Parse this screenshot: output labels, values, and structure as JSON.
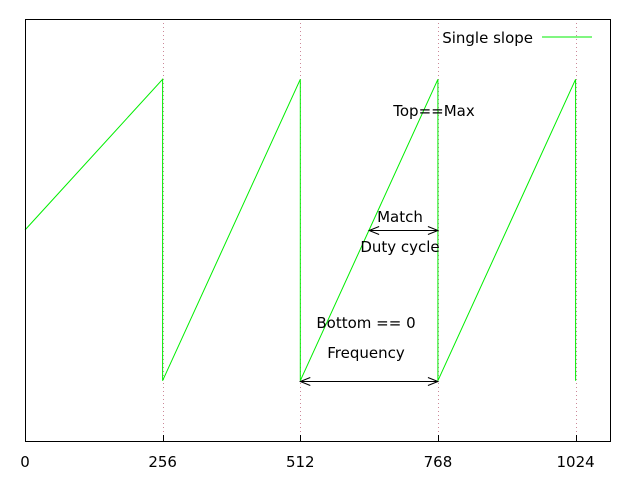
{
  "chart_data": {
    "type": "line",
    "xlim": [
      0,
      1088
    ],
    "ylim": [
      -0.2,
      1.2
    ],
    "x_ticks": [
      0,
      256,
      512,
      768,
      1024
    ],
    "x_tick_labels": [
      "0",
      "256",
      "512",
      "768",
      "1024"
    ],
    "y_ticks": [],
    "grid": "vertical dotted lines at x ticks",
    "legend_position": "top-right",
    "series": [
      {
        "name": "Single slope",
        "color": "#00ee00",
        "x": [
          0,
          256,
          256,
          512,
          512,
          768,
          768,
          1024,
          1024
        ],
        "y": [
          0.5,
          1.0,
          0.0,
          1.0,
          0.0,
          1.0,
          0.0,
          1.0,
          0.0
        ]
      }
    ],
    "annotations": {
      "top_label": {
        "text": "Top==Max",
        "x": 768,
        "y": 1.0
      },
      "match_label": {
        "text": "Match",
        "y": 0.5
      },
      "duty_label": {
        "text": "Duty cycle",
        "y": 0.5
      },
      "bottom_label": {
        "text": "Bottom == 0",
        "y": 0.0
      },
      "freq_label": {
        "text": "Frequency",
        "y": 0.0
      },
      "duty_arrow": {
        "x1": 640,
        "x2": 768,
        "y": 0.5
      },
      "freq_arrow": {
        "x1": 512,
        "x2": 768,
        "y": 0.0
      }
    },
    "colors": {
      "series": "#00ee00",
      "grid": "#cc8899",
      "axis": "#000000"
    }
  }
}
